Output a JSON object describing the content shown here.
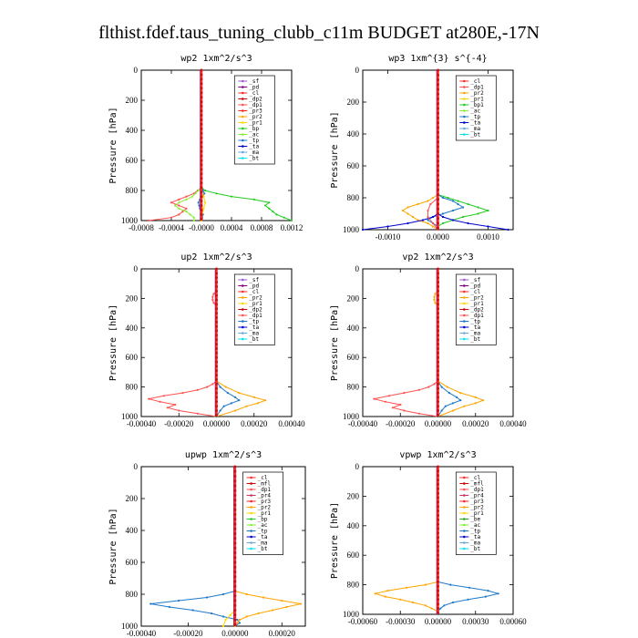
{
  "title": "flthist.fdef.taus_tuning_clubb_c11m  BUDGET at280E,-17N",
  "colors": {
    "_sf": "#9b59d0",
    "_pd": "#800080",
    "_cl": "#ff2a2a",
    "_dp2": "#cc0000",
    "_dp1": "#ff5050",
    "_pr3": "#ff2222",
    "_pr2": "#ffa500",
    "_pr1": "#ffd700",
    "_bp": "#22cc22",
    "_bp1": "#22cc22",
    "_ac": "#88ee33",
    "_tp": "#1e78c8",
    "_ta": "#0000cc",
    "_ma": "#66aadd",
    "_bt": "#00e5ee",
    "_mfl": "#cc0000",
    "_pr4": "#cc3366",
    "_be": "#22aa22"
  },
  "chart_data": [
    {
      "type": "line",
      "title": "wp2  1xm^2/s^3",
      "ylabel": "Pressure [hPa]",
      "ylim": [
        1000,
        0
      ],
      "xlim": [
        -0.0008,
        0.0012
      ],
      "xticks": [
        -0.0008,
        -0.0004,
        0.0,
        0.0004,
        0.0008,
        0.0012
      ],
      "xticklabels": [
        "-0.0008",
        "-0.0004",
        "-0.0000",
        "0.0004",
        "0.0008",
        "0.0012"
      ],
      "yticks": [
        0,
        200,
        400,
        600,
        800,
        1000
      ],
      "legend": [
        "_sf",
        "_pd",
        "_cl",
        "_dp2",
        "_dp1",
        "_pr3",
        "_pr2",
        "_pr1",
        "_bp",
        "_ac",
        "_tp",
        "_ta",
        "_ma",
        "_bt"
      ],
      "series": [
        {
          "name": "_bp",
          "p": [
            780,
            800,
            820,
            840,
            860,
            880,
            900,
            920,
            940,
            960,
            980,
            1000
          ],
          "v": [
            0.0,
            5e-05,
            0.0002,
            0.0004,
            0.0007,
            0.0009,
            0.00085,
            0.0009,
            0.00095,
            0.001,
            0.0011,
            0.0012
          ]
        },
        {
          "name": "_dp1",
          "p": [
            780,
            800,
            820,
            840,
            860,
            880,
            900,
            920,
            940,
            960,
            980,
            1000
          ],
          "v": [
            0.0,
            -5e-05,
            -0.0001,
            -0.0002,
            -0.0003,
            -0.0004,
            -0.0003,
            -0.0002,
            -0.00025,
            -0.0003,
            -0.0004,
            -0.0007
          ]
        },
        {
          "name": "_ac",
          "p": [
            780,
            800,
            820,
            840,
            860,
            880,
            900,
            920,
            940,
            960,
            980,
            1000
          ],
          "v": [
            0.0,
            -4e-05,
            -8e-05,
            -0.00012,
            -0.0002,
            -0.0003,
            -0.00035,
            -0.0003,
            -0.0002,
            -0.00015,
            -0.0001,
            -0.0001
          ]
        },
        {
          "name": "_tp",
          "p": [
            780,
            800,
            820,
            840,
            860,
            880,
            900,
            920,
            940,
            960,
            980,
            1000
          ],
          "v": [
            0.0,
            2e-05,
            4e-05,
            2e-05,
            -2e-05,
            -4e-05,
            -3e-05,
            -2e-05,
            0.0,
            2e-05,
            1e-05,
            0.0
          ]
        },
        {
          "name": "_pr1",
          "p": [
            800,
            840,
            880,
            920,
            960,
            1000
          ],
          "v": [
            0.0,
            3e-05,
            5e-05,
            3e-05,
            1e-05,
            0.0
          ]
        }
      ]
    },
    {
      "type": "line",
      "title": "wp3  1xm^{3} s^{-4}",
      "ylabel": "Pressure [hPa]",
      "ylim": [
        1000,
        0
      ],
      "xlim": [
        -0.0015,
        0.0015
      ],
      "xticks": [
        -0.001,
        0.0,
        0.001
      ],
      "xticklabels": [
        "-0.0010",
        "0.0000",
        "0.0010"
      ],
      "yticks": [
        0,
        200,
        400,
        600,
        800,
        1000
      ],
      "legend": [
        "_cl",
        "_dp1",
        "_pr2",
        "_pr1",
        "_bp1",
        "_ac",
        "_tp",
        "_ta",
        "_ma",
        "_bt"
      ],
      "series": [
        {
          "name": "_pr2",
          "p": [
            780,
            800,
            820,
            840,
            860,
            880,
            900,
            920,
            940,
            960,
            980,
            1000
          ],
          "v": [
            0.0,
            -0.0001,
            -0.0002,
            -0.0004,
            -0.0006,
            -0.0007,
            -0.0006,
            -0.0005,
            -0.0004,
            -0.0002,
            -0.0001,
            0.0
          ]
        },
        {
          "name": "_bp1",
          "p": [
            780,
            800,
            820,
            840,
            860,
            880,
            900,
            920,
            940,
            960,
            980,
            1000
          ],
          "v": [
            0.0,
            0.0002,
            0.0004,
            0.0006,
            0.0008,
            0.001,
            0.0008,
            0.0005,
            0.0003,
            0.0001,
            0.0,
            0.0
          ]
        },
        {
          "name": "_tp",
          "p": [
            780,
            800,
            820,
            840,
            860,
            880,
            900,
            920,
            940,
            960,
            980,
            1000
          ],
          "v": [
            0.0,
            0.0001,
            0.0003,
            0.0004,
            0.0005,
            0.0003,
            0.0001,
            -0.0001,
            -0.0002,
            -0.0001,
            0.0,
            0.0
          ]
        },
        {
          "name": "_ta",
          "p": [
            900,
            920,
            940,
            960,
            980,
            1000
          ],
          "v": [
            0.0,
            -0.0001,
            -0.0003,
            -0.0006,
            -0.001,
            -0.0015
          ]
        },
        {
          "name": "_ta",
          "p": [
            900,
            920,
            940,
            960,
            980,
            1000
          ],
          "v": [
            0.0,
            0.0001,
            0.0003,
            0.0006,
            0.001,
            0.0014
          ]
        },
        {
          "name": "_dp1",
          "p": [
            800,
            840,
            880,
            920,
            960,
            1000
          ],
          "v": [
            0.0,
            -0.00015,
            -0.0002,
            -0.0002,
            -0.0001,
            0.0
          ]
        }
      ]
    },
    {
      "type": "line",
      "title": "up2  1xm^2/s^3",
      "ylabel": "Pressure [hPa]",
      "ylim": [
        1000,
        0
      ],
      "xlim": [
        -0.0004,
        0.0004
      ],
      "xticks": [
        -0.0004,
        -0.0002,
        0.0,
        0.0002,
        0.0004
      ],
      "xticklabels": [
        "-0.00040",
        "-0.00020",
        "0.00000",
        "0.00020",
        "0.00040"
      ],
      "yticks": [
        0,
        200,
        400,
        600,
        800,
        1000
      ],
      "legend": [
        "_sf",
        "_pd",
        "_cl",
        "_pr2",
        "_pr1",
        "_dp2",
        "_dp1",
        "_tp",
        "_ta",
        "_ma",
        "_bt"
      ],
      "series": [
        {
          "name": "_dp1",
          "p": [
            760,
            780,
            800,
            820,
            840,
            860,
            880,
            900,
            920,
            940,
            960,
            980,
            1000
          ],
          "v": [
            0.0,
            -2e-05,
            -5e-05,
            -0.0001,
            -0.00018,
            -0.00028,
            -0.00036,
            -0.0003,
            -0.00022,
            -0.00026,
            -0.0002,
            -0.0001,
            0.0
          ]
        },
        {
          "name": "_dp1",
          "p": [
            150,
            170,
            190,
            210,
            230,
            250
          ],
          "v": [
            0.0,
            -1.5e-05,
            -2e-05,
            -2e-05,
            -1.5e-05,
            0.0
          ]
        },
        {
          "name": "_pr2",
          "p": [
            760,
            800,
            840,
            870,
            890,
            910,
            930,
            960,
            1000
          ],
          "v": [
            0.0,
            5e-05,
            0.00012,
            0.0002,
            0.00026,
            0.00022,
            0.00016,
            0.0001,
            0.0
          ]
        },
        {
          "name": "_tp",
          "p": [
            760,
            800,
            840,
            870,
            890,
            910,
            930,
            960,
            1000
          ],
          "v": [
            0.0,
            2e-05,
            6e-05,
            0.0001,
            0.00012,
            8e-05,
            4e-05,
            2e-05,
            0.0
          ]
        }
      ]
    },
    {
      "type": "line",
      "title": "vp2  1xm^2/s^3",
      "ylabel": "Pressure [hPa]",
      "ylim": [
        1000,
        0
      ],
      "xlim": [
        -0.0004,
        0.0004
      ],
      "xticks": [
        -0.0004,
        -0.0002,
        0.0,
        0.0002,
        0.0004
      ],
      "xticklabels": [
        "-0.00040",
        "-0.00020",
        "0.00000",
        "0.00020",
        "0.00040"
      ],
      "yticks": [
        0,
        200,
        400,
        600,
        800,
        1000
      ],
      "legend": [
        "_sf",
        "_pd",
        "_cl",
        "_pr2",
        "_pr1",
        "_dp2",
        "_dp1",
        "_tp",
        "_ta",
        "_ma",
        "_bt"
      ],
      "series": [
        {
          "name": "_dp1",
          "p": [
            760,
            780,
            800,
            820,
            840,
            860,
            880,
            900,
            920,
            940,
            960,
            980,
            1000
          ],
          "v": [
            0.0,
            -2e-05,
            -5e-05,
            -0.0001,
            -0.00018,
            -0.00026,
            -0.00034,
            -0.00028,
            -0.0002,
            -0.00024,
            -0.00018,
            -0.0001,
            0.0
          ]
        },
        {
          "name": "_pr2",
          "p": [
            150,
            170,
            190,
            210,
            230,
            250
          ],
          "v": [
            0.0,
            -1.5e-05,
            -2e-05,
            -2e-05,
            -1.5e-05,
            0.0
          ]
        },
        {
          "name": "_pr2",
          "p": [
            760,
            800,
            840,
            870,
            890,
            910,
            930,
            960,
            1000
          ],
          "v": [
            0.0,
            5e-05,
            0.00012,
            0.0002,
            0.00024,
            0.0002,
            0.00014,
            8e-05,
            0.0
          ]
        },
        {
          "name": "_tp",
          "p": [
            760,
            800,
            840,
            870,
            890,
            910,
            930,
            960,
            1000
          ],
          "v": [
            0.0,
            2e-05,
            6e-05,
            0.0001,
            0.00012,
            8e-05,
            4e-05,
            2e-05,
            0.0
          ]
        }
      ]
    },
    {
      "type": "line",
      "title": "upwp  1xm^2/s^3",
      "ylabel": "Pressure [hPa]",
      "ylim": [
        1000,
        0
      ],
      "xlim": [
        -0.0004,
        0.0003
      ],
      "xticks": [
        -0.0004,
        -0.0002,
        0.0,
        0.0002
      ],
      "xticklabels": [
        "-0.00040",
        "-0.00020",
        "0.00000",
        "0.00020"
      ],
      "yticks": [
        0,
        200,
        400,
        600,
        800,
        1000
      ],
      "legend": [
        "_cl",
        "_mfl",
        "_dp1",
        "_pr4",
        "_pr3",
        "_pr2",
        "_pr1",
        "_bp",
        "_ac",
        "_tp",
        "_ta",
        "_ma",
        "_bt"
      ],
      "series": [
        {
          "name": "_tp",
          "p": [
            780,
            800,
            820,
            840,
            860,
            880,
            900,
            920,
            940,
            960,
            980,
            1000
          ],
          "v": [
            0.0,
            -5e-05,
            -0.00012,
            -0.00024,
            -0.00036,
            -0.00028,
            -0.00018,
            -0.0001,
            -5e-05,
            1e-05,
            2e-05,
            0.0
          ]
        },
        {
          "name": "_pr2",
          "p": [
            780,
            800,
            820,
            840,
            860,
            880,
            900,
            920,
            940,
            960,
            980,
            1000
          ],
          "v": [
            0.0,
            5e-05,
            0.00012,
            0.0002,
            0.00028,
            0.00022,
            0.00016,
            0.0001,
            5e-05,
            2e-05,
            1e-05,
            0.0
          ]
        },
        {
          "name": "_pr1",
          "p": [
            900,
            930,
            960,
            1000
          ],
          "v": [
            0.0,
            -2e-05,
            -4e-05,
            -5e-05
          ]
        }
      ]
    },
    {
      "type": "line",
      "title": "vpwp  1xm^2/s^3",
      "ylabel": "Pressure [hPa]",
      "ylim": [
        1000,
        0
      ],
      "xlim": [
        -0.0006,
        0.0006
      ],
      "xticks": [
        -0.0006,
        -0.0003,
        0.0,
        0.0003,
        0.0006
      ],
      "xticklabels": [
        "-0.00060",
        "-0.00030",
        "0.00000",
        "0.00030",
        "0.00060"
      ],
      "yticks": [
        0,
        200,
        400,
        600,
        800,
        1000
      ],
      "legend": [
        "_cl",
        "_mfl",
        "_dp1",
        "_pr4",
        "_pr3",
        "_pr2",
        "_pr1",
        "_be",
        "_ac",
        "_tp",
        "_ta",
        "_ma",
        "_bt"
      ],
      "series": [
        {
          "name": "_pr2",
          "p": [
            780,
            800,
            820,
            840,
            860,
            880,
            900,
            920,
            940,
            960,
            980,
            1000
          ],
          "v": [
            0.0,
            -0.0001,
            -0.00025,
            -0.0004,
            -0.0005,
            -0.00042,
            -0.0003,
            -0.0002,
            -0.0001,
            -5e-05,
            0.0,
            0.0
          ]
        },
        {
          "name": "_tp",
          "p": [
            780,
            800,
            820,
            840,
            860,
            880,
            900,
            920,
            940,
            960,
            980,
            1000
          ],
          "v": [
            0.0,
            0.0001,
            0.00025,
            0.0004,
            0.00048,
            0.00038,
            0.00024,
            0.00012,
            5e-05,
            2e-05,
            0.0,
            0.0
          ]
        }
      ]
    }
  ]
}
